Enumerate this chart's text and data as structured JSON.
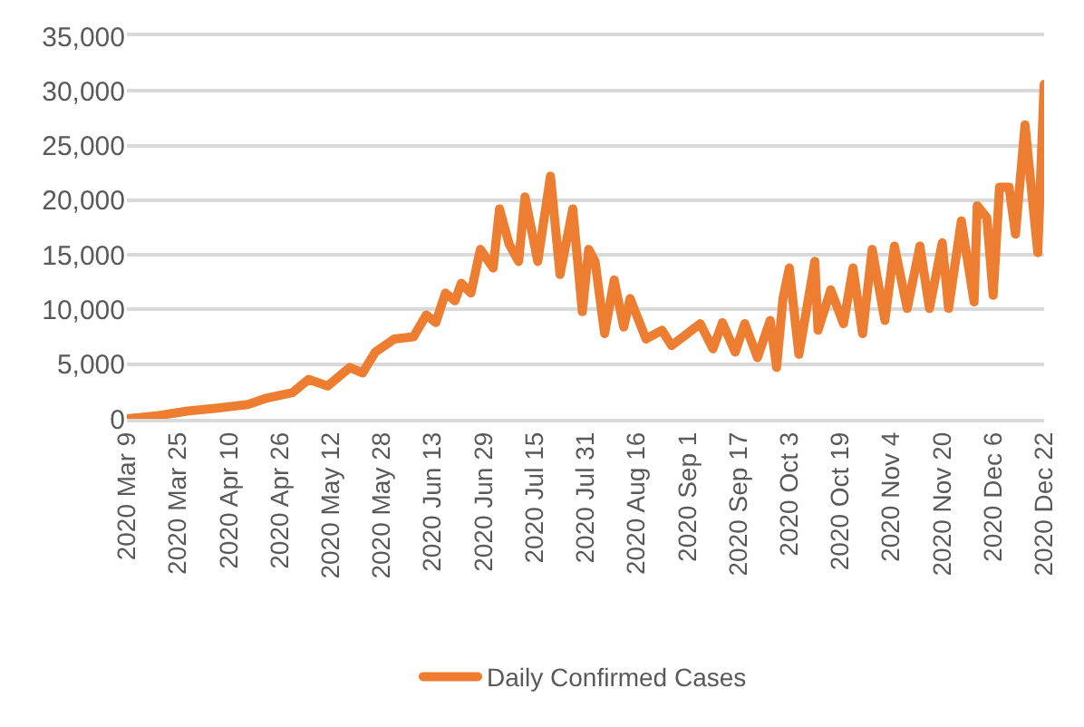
{
  "chart_data": {
    "type": "line",
    "x": [
      "2020-03-09",
      "2020-03-19",
      "2020-03-28",
      "2020-04-07",
      "2020-04-16",
      "2020-04-22",
      "2020-04-30",
      "2020-05-05",
      "2020-05-11",
      "2020-05-18",
      "2020-05-22",
      "2020-05-26",
      "2020-06-01",
      "2020-06-07",
      "2020-06-11",
      "2020-06-14",
      "2020-06-17",
      "2020-06-20",
      "2020-06-22",
      "2020-06-25",
      "2020-06-28",
      "2020-07-02",
      "2020-07-04",
      "2020-07-07",
      "2020-07-10",
      "2020-07-12",
      "2020-07-16",
      "2020-07-20",
      "2020-07-23",
      "2020-07-27",
      "2020-07-30",
      "2020-08-01",
      "2020-08-03",
      "2020-08-06",
      "2020-08-09",
      "2020-08-12",
      "2020-08-14",
      "2020-08-19",
      "2020-08-24",
      "2020-08-27",
      "2020-09-01",
      "2020-09-05",
      "2020-09-09",
      "2020-09-12",
      "2020-09-16",
      "2020-09-19",
      "2020-09-23",
      "2020-09-27",
      "2020-09-29",
      "2020-10-01",
      "2020-10-03",
      "2020-10-06",
      "2020-10-11",
      "2020-10-12",
      "2020-10-16",
      "2020-10-20",
      "2020-10-23",
      "2020-10-26",
      "2020-10-29",
      "2020-11-02",
      "2020-11-05",
      "2020-11-09",
      "2020-11-13",
      "2020-11-16",
      "2020-11-20",
      "2020-11-22",
      "2020-11-26",
      "2020-11-30",
      "2020-12-01",
      "2020-12-04",
      "2020-12-06",
      "2020-12-08",
      "2020-12-11",
      "2020-12-13",
      "2020-12-16",
      "2020-12-20",
      "2020-12-22"
    ],
    "series": [
      {
        "name": "Daily Confirmed Cases",
        "color": "#ed7d31",
        "values": [
          0,
          300,
          700,
          1000,
          1300,
          1900,
          2400,
          3600,
          3000,
          4700,
          4200,
          6100,
          7300,
          7500,
          9500,
          8800,
          11500,
          10800,
          12400,
          11500,
          15500,
          13800,
          19200,
          16000,
          14400,
          20300,
          14400,
          22200,
          13200,
          19200,
          9800,
          15500,
          14400,
          7800,
          12700,
          8400,
          11000,
          7300,
          8100,
          6700,
          7800,
          8700,
          6400,
          8800,
          6100,
          8700,
          5600,
          9000,
          4700,
          11000,
          13800,
          5900,
          14400,
          8100,
          11800,
          8700,
          13800,
          7800,
          15500,
          9000,
          15800,
          10100,
          15800,
          10100,
          16100,
          10100,
          18100,
          10700,
          19500,
          18400,
          11300,
          21200,
          21200,
          16900,
          26900,
          15200,
          30600
        ]
      }
    ],
    "xlim": [
      "2020-03-09",
      "2020-12-22"
    ],
    "xticks": [
      {
        "value": "2020-03-09",
        "label": "2020 Mar 9"
      },
      {
        "value": "2020-03-25",
        "label": "2020 Mar 25"
      },
      {
        "value": "2020-04-10",
        "label": "2020 Apr 10"
      },
      {
        "value": "2020-04-26",
        "label": "2020 Apr 26"
      },
      {
        "value": "2020-05-12",
        "label": "2020 May 12"
      },
      {
        "value": "2020-05-28",
        "label": "2020 May 28"
      },
      {
        "value": "2020-06-13",
        "label": "2020 Jun 13"
      },
      {
        "value": "2020-06-29",
        "label": "2020 Jun 29"
      },
      {
        "value": "2020-07-15",
        "label": "2020 Jul 15"
      },
      {
        "value": "2020-07-31",
        "label": "2020 Jul 31"
      },
      {
        "value": "2020-08-16",
        "label": "2020 Aug 16"
      },
      {
        "value": "2020-09-01",
        "label": "2020 Sep 1"
      },
      {
        "value": "2020-09-17",
        "label": "2020 Sep 17"
      },
      {
        "value": "2020-10-03",
        "label": "2020 Oct 3"
      },
      {
        "value": "2020-10-19",
        "label": "2020 Oct 19"
      },
      {
        "value": "2020-11-04",
        "label": "2020 Nov 4"
      },
      {
        "value": "2020-11-20",
        "label": "2020 Nov 20"
      },
      {
        "value": "2020-12-06",
        "label": "2020 Dec 6"
      },
      {
        "value": "2020-12-22",
        "label": "2020 Dec 22"
      }
    ],
    "ylim": [
      0,
      35000
    ],
    "yticks": [
      0,
      {
        "value": 5000,
        "label": "5,000"
      },
      {
        "value": 10000,
        "label": "10,000"
      },
      {
        "value": 15000,
        "label": "15,000"
      },
      {
        "value": 20000,
        "label": "20,000"
      },
      {
        "value": 25000,
        "label": "25,000"
      },
      {
        "value": 30000,
        "label": "30,000"
      },
      {
        "value": 35000,
        "label": "35,000"
      }
    ],
    "grid": "y",
    "legend": "bottom",
    "marker": "none",
    "line_style": "solid"
  }
}
